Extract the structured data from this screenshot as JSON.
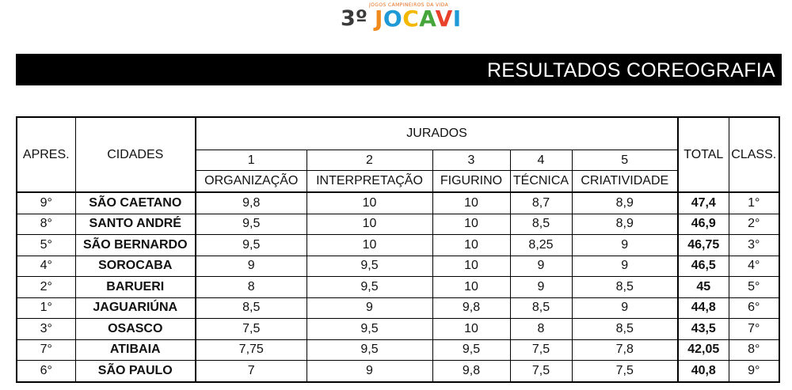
{
  "logo": {
    "tagline": "JOGOS CAMPINEIROS DA VIDA",
    "ordinal": "3º",
    "name_letters": [
      "J",
      "O",
      "C",
      "A",
      "V",
      "I"
    ]
  },
  "header_bar": {
    "title": "RESULTADOS COREOGRAFIA"
  },
  "table": {
    "headers": {
      "apres": "APRES.",
      "cidades": "CIDADES",
      "jurados": "JURADOS",
      "total": "TOTAL",
      "class": "CLASS."
    },
    "judges": [
      {
        "number": "1",
        "criterion": "ORGANIZAÇÃO"
      },
      {
        "number": "2",
        "criterion": "INTERPRETAÇÃO"
      },
      {
        "number": "3",
        "criterion": "FIGURINO"
      },
      {
        "number": "4",
        "criterion": "TÉCNICA"
      },
      {
        "number": "5",
        "criterion": "CRIATIVIDADE"
      }
    ],
    "rows": [
      {
        "apres": "9°",
        "city": "SÃO CAETANO",
        "scores": [
          "9,8",
          "10",
          "10",
          "8,7",
          "8,9"
        ],
        "total": "47,4",
        "class": "1°"
      },
      {
        "apres": "8°",
        "city": "SANTO ANDRÉ",
        "scores": [
          "9,5",
          "10",
          "10",
          "8,5",
          "8,9"
        ],
        "total": "46,9",
        "class": "2°"
      },
      {
        "apres": "5°",
        "city": "SÃO BERNARDO",
        "scores": [
          "9,5",
          "10",
          "10",
          "8,25",
          "9"
        ],
        "total": "46,75",
        "class": "3°"
      },
      {
        "apres": "4°",
        "city": "SOROCABA",
        "scores": [
          "9",
          "9,5",
          "10",
          "9",
          "9"
        ],
        "total": "46,5",
        "class": "4°"
      },
      {
        "apres": "2°",
        "city": "BARUERI",
        "scores": [
          "8",
          "9,5",
          "10",
          "9",
          "8,5"
        ],
        "total": "45",
        "class": "5°"
      },
      {
        "apres": "1°",
        "city": "JAGUARIÚNA",
        "scores": [
          "8,5",
          "9",
          "9,8",
          "8,5",
          "9"
        ],
        "total": "44,8",
        "class": "6°"
      },
      {
        "apres": "3°",
        "city": "OSASCO",
        "scores": [
          "7,5",
          "9,5",
          "10",
          "8",
          "8,5"
        ],
        "total": "43,5",
        "class": "7°"
      },
      {
        "apres": "7°",
        "city": "ATIBAIA",
        "scores": [
          "7,75",
          "9,5",
          "9,5",
          "7,5",
          "7,8"
        ],
        "total": "42,05",
        "class": "8°"
      },
      {
        "apres": "6°",
        "city": "SÃO PAULO",
        "scores": [
          "7",
          "9",
          "9,8",
          "7,5",
          "7,5"
        ],
        "total": "40,8",
        "class": "9°"
      }
    ]
  },
  "colors": {
    "logo_orange": "#f08a1c",
    "logo_blue": "#1f9ad6",
    "logo_yellow": "#f5b800",
    "logo_green": "#46a63c",
    "logo_red": "#e8412c",
    "bar_background": "#000000"
  }
}
